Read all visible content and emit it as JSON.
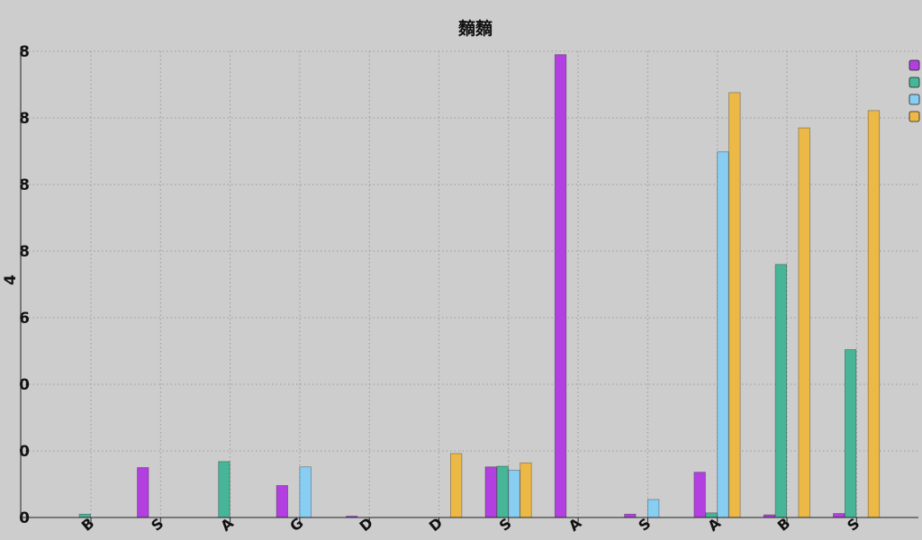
{
  "chart_data": {
    "type": "bar",
    "title": "䵂䵂",
    "xlabel": "",
    "ylabel": "4",
    "ylim": [
      0,
      7
    ],
    "yticks": [
      {
        "value": 0,
        "label": "0"
      },
      {
        "value": 1,
        "label": "0"
      },
      {
        "value": 2,
        "label": "0"
      },
      {
        "value": 3,
        "label": "6"
      },
      {
        "value": 4,
        "label": "8"
      },
      {
        "value": 5,
        "label": "8"
      },
      {
        "value": 6,
        "label": "8"
      },
      {
        "value": 7,
        "label": "8"
      }
    ],
    "categories": [
      "B",
      "S",
      "A",
      "G",
      "D",
      "D",
      "S",
      "A",
      "S",
      "A",
      "B",
      "S"
    ],
    "grid": true,
    "legend_position": "top-right",
    "colors": [
      "#b23fe0",
      "#47b597",
      "#88cdf2",
      "#ecb846"
    ],
    "series": [
      {
        "name": "",
        "values": [
          0,
          0.75,
          0,
          0.48,
          0.02,
          0,
          0.76,
          6.95,
          0.05,
          0.68,
          0.04,
          0.06
        ]
      },
      {
        "name": "",
        "values": [
          0.05,
          0,
          0.84,
          0,
          0,
          0,
          0.77,
          0,
          0,
          0.07,
          3.8,
          2.52
        ]
      },
      {
        "name": "",
        "values": [
          0,
          0,
          0,
          0.76,
          0,
          0,
          0.71,
          0,
          0.27,
          5.49,
          0,
          0
        ]
      },
      {
        "name": "",
        "values": [
          0,
          0,
          0,
          0,
          0,
          0.96,
          0.82,
          0,
          0,
          6.38,
          5.85,
          6.11
        ]
      }
    ]
  }
}
